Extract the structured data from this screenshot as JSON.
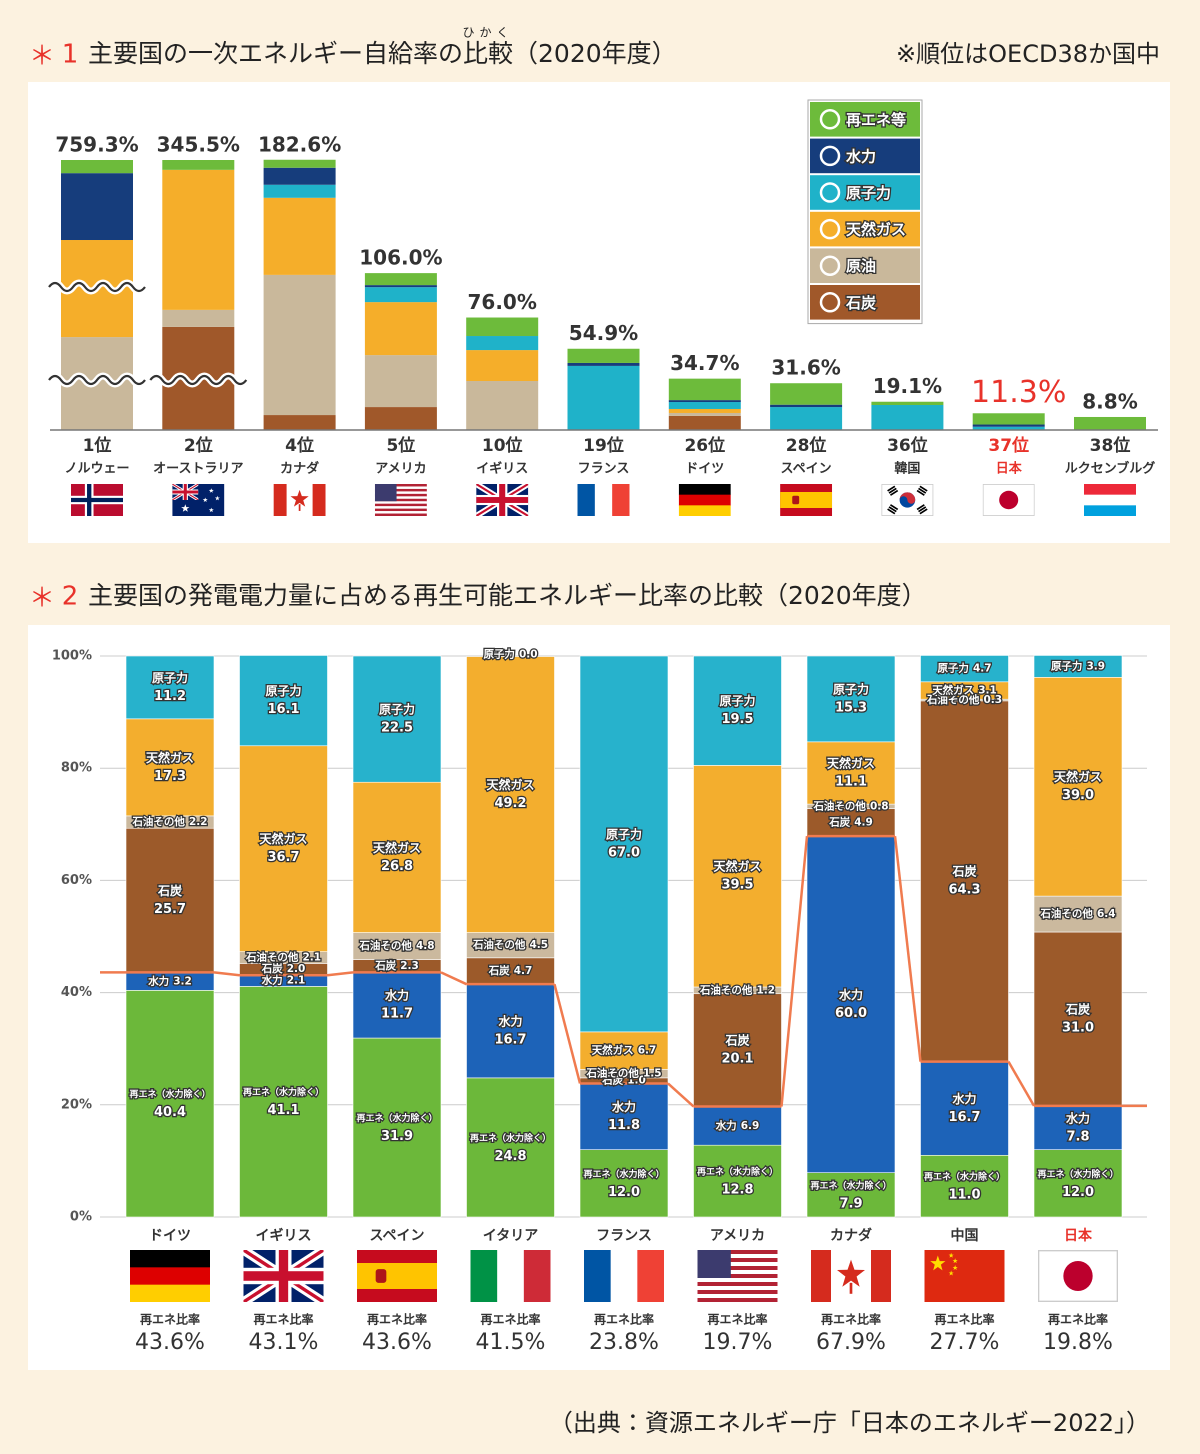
{
  "chart_data": [
    {
      "type": "stacked_bar",
      "marker": "＊",
      "number": "1",
      "title": "主要国の一次エネルギー自給率の比較（2020年度）",
      "title_ruby": {
        "text": "ひかく",
        "base": "比較"
      },
      "note": "※順位はOECD38か国中",
      "categories": [
        "ノルウェー",
        "オーストラリア",
        "カナダ",
        "アメリカ",
        "イギリス",
        "フランス",
        "ドイツ",
        "スペイン",
        "韓国",
        "日本",
        "ルクセンブルグ"
      ],
      "ranks": [
        "1位",
        "2位",
        "4位",
        "5位",
        "10位",
        "19位",
        "26位",
        "28位",
        "36位",
        "37位",
        "38位"
      ],
      "values": [
        759.3,
        345.5,
        182.6,
        106.0,
        76.0,
        54.9,
        34.7,
        31.6,
        19.1,
        11.3,
        8.8
      ],
      "value_labels": [
        "759.3%",
        "345.5%",
        "182.6%",
        "106.0%",
        "76.0%",
        "54.9%",
        "34.7%",
        "31.6%",
        "19.1%",
        "11.3%",
        "8.8%"
      ],
      "highlight": 9,
      "highlight_color": "#e8322a",
      "legend": "top-right",
      "series": [
        {
          "name": "石炭",
          "color": "#a0582a",
          "values": [
            0,
            131.9,
            10.1,
            15.5,
            0,
            0,
            9.5,
            0,
            0,
            0,
            0
          ]
        },
        {
          "name": "原油",
          "color": "#c9b89b",
          "values": [
            261.3,
            21.8,
            94.7,
            35.1,
            33.1,
            0,
            2.0,
            0,
            0,
            0,
            0
          ]
        },
        {
          "name": "天然ガス",
          "color": "#f5ae2a",
          "values": [
            273.0,
            179.2,
            52.1,
            35.8,
            20.9,
            0,
            2.7,
            0,
            0,
            0,
            0
          ]
        },
        {
          "name": "原子力",
          "color": "#1fb2c9",
          "values": [
            0,
            0,
            8.8,
            10.1,
            9.5,
            43.3,
            4.7,
            15.5,
            16.9,
            2.2,
            0
          ]
        },
        {
          "name": "水力",
          "color": "#163d7c",
          "values": [
            188.0,
            0,
            11.5,
            1.4,
            0,
            2.0,
            1.3,
            1.6,
            0,
            1.5,
            0
          ]
        },
        {
          "name": "再エネ等",
          "color": "#6dbb3b",
          "values": [
            37.0,
            12.6,
            5.4,
            8.1,
            12.5,
            9.6,
            14.5,
            14.5,
            2.2,
            7.6,
            8.8
          ]
        }
      ]
    },
    {
      "type": "stacked_bar_percent",
      "marker": "＊",
      "number": "2",
      "title": "主要国の発電電力量に占める再生可能エネルギー比率の比較（2020年度）",
      "categories": [
        "ドイツ",
        "イギリス",
        "スペイン",
        "イタリア",
        "フランス",
        "アメリカ",
        "カナダ",
        "中国",
        "日本"
      ],
      "ylim": [
        0,
        100
      ],
      "yticks": [
        {
          "value": 0,
          "label": "0%"
        },
        {
          "value": 20,
          "label": "20%"
        },
        {
          "value": 40,
          "label": "40%"
        },
        {
          "value": 60,
          "label": "60%"
        },
        {
          "value": 80,
          "label": "80%"
        },
        {
          "value": 100,
          "label": "100%"
        }
      ],
      "grid": true,
      "ratio_title": "再エネ比率",
      "ratios": [
        43.6,
        43.1,
        43.6,
        41.5,
        23.8,
        19.7,
        67.9,
        27.7,
        19.8
      ],
      "ratio_labels": [
        "43.6%",
        "43.1%",
        "43.6%",
        "41.5%",
        "23.8%",
        "19.7%",
        "67.9%",
        "27.7%",
        "19.8%"
      ],
      "line_color": "#f07b4f",
      "highlight": 8,
      "highlight_color": "#e8322a",
      "series": [
        {
          "name": "再エネ（水力除く）",
          "color": "#6cb83a",
          "values": [
            40.4,
            41.1,
            31.9,
            24.8,
            12.0,
            12.8,
            7.9,
            11.0,
            12.0
          ],
          "value_labels": [
            "40.4",
            "41.1",
            "31.9",
            "24.8",
            "12.0",
            "12.8",
            "7.9",
            "11.0",
            "12.0"
          ]
        },
        {
          "name": "水力",
          "color": "#1d63b8",
          "values": [
            3.2,
            2.1,
            11.7,
            16.7,
            11.8,
            6.9,
            60.0,
            16.7,
            7.8
          ],
          "value_labels": [
            "3.2",
            "2.1",
            "11.7",
            "16.7",
            "11.8",
            "6.9",
            "60.0",
            "16.7",
            "7.8"
          ]
        },
        {
          "name": "石炭",
          "color": "#9c5a2a",
          "values": [
            25.7,
            2.0,
            2.3,
            4.7,
            1.0,
            20.1,
            4.9,
            64.3,
            31.0
          ],
          "value_labels": [
            "25.7",
            "2.0",
            "2.3",
            "4.7",
            "1.0",
            "20.1",
            "4.9",
            "64.3",
            "31.0"
          ]
        },
        {
          "name": "石油その他",
          "color": "#cbb99e",
          "values": [
            2.2,
            2.1,
            4.8,
            4.5,
            1.5,
            1.2,
            0.8,
            0.3,
            6.4
          ],
          "value_labels": [
            "2.2",
            "2.1",
            "4.8",
            "4.5",
            "1.5",
            "1.2",
            "0.8",
            "0.3",
            "6.4"
          ]
        },
        {
          "name": "天然ガス",
          "color": "#f3ae2e",
          "values": [
            17.3,
            36.7,
            26.8,
            49.2,
            6.7,
            39.5,
            11.1,
            3.1,
            39.0
          ],
          "value_labels": [
            "17.3",
            "36.7",
            "26.8",
            "49.2",
            "6.7",
            "39.5",
            "11.1",
            "3.1",
            "39.0"
          ]
        },
        {
          "name": "原子力",
          "color": "#27b2cc",
          "values": [
            11.2,
            16.1,
            22.5,
            0.0,
            67.0,
            19.5,
            15.3,
            4.7,
            3.9
          ],
          "value_labels": [
            "11.2",
            "16.1",
            "22.5",
            "0.0",
            "67.0",
            "19.5",
            "15.3",
            "4.7",
            "3.9"
          ]
        }
      ]
    }
  ],
  "source": "（出典：資源エネルギー庁「日本のエネルギー2022」）"
}
